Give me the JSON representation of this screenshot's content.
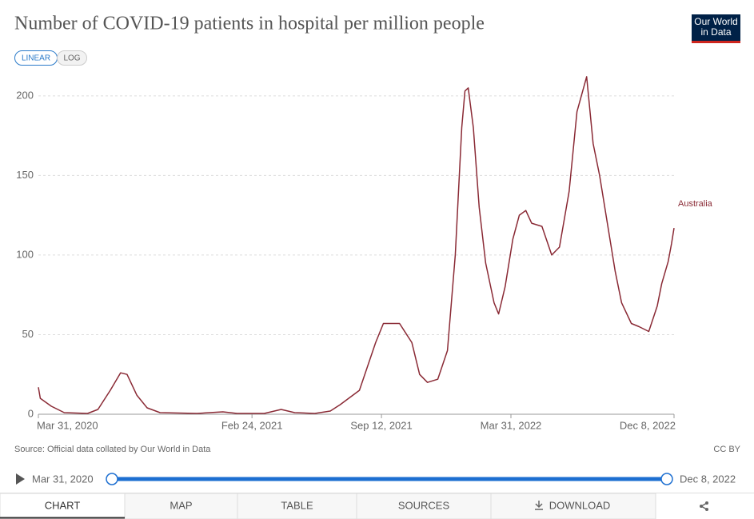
{
  "logo": "Our World in Data",
  "scale_buttons": [
    "LINEAR",
    "LOG"
  ],
  "chart_data": {
    "type": "line",
    "title": "Number of COVID-19 patients in hospital per million people",
    "source": "Source: Official data collated by Our World in Data",
    "license": "CC BY",
    "x": [
      "2020-03-31",
      "2020-04-03",
      "2020-04-20",
      "2020-05-10",
      "2020-06-15",
      "2020-07-01",
      "2020-07-20",
      "2020-08-05",
      "2020-08-15",
      "2020-08-30",
      "2020-09-15",
      "2020-10-05",
      "2020-12-01",
      "2021-01-10",
      "2021-02-01",
      "2021-03-15",
      "2021-04-10",
      "2021-05-01",
      "2021-06-01",
      "2021-06-25",
      "2021-07-10",
      "2021-08-09",
      "2021-09-03",
      "2021-09-15",
      "2021-10-10",
      "2021-10-29",
      "2021-11-10",
      "2021-11-22",
      "2021-12-08",
      "2021-12-23",
      "2022-01-04",
      "2022-01-14",
      "2022-01-19",
      "2022-01-24",
      "2022-02-01",
      "2022-02-10",
      "2022-02-20",
      "2022-03-05",
      "2022-03-12",
      "2022-03-22",
      "2022-04-03",
      "2022-04-13",
      "2022-04-23",
      "2022-05-02",
      "2022-05-18",
      "2022-06-02",
      "2022-06-14",
      "2022-06-29",
      "2022-07-11",
      "2022-07-26",
      "2022-08-05",
      "2022-08-15",
      "2022-08-27",
      "2022-09-08",
      "2022-09-18",
      "2022-10-03",
      "2022-10-15",
      "2022-10-30",
      "2022-11-12",
      "2022-11-19",
      "2022-11-29",
      "2022-12-04",
      "2022-12-08"
    ],
    "series": [
      {
        "name": "Australia",
        "color": "#8a2a35",
        "values": [
          17,
          10,
          5,
          1,
          0.5,
          3,
          15,
          26,
          25,
          12,
          4,
          1,
          0.5,
          1.5,
          0.5,
          0.5,
          3,
          1,
          0.5,
          2,
          6,
          15,
          45,
          57,
          57,
          45,
          25,
          20,
          22,
          40,
          100,
          180,
          203,
          205,
          180,
          130,
          95,
          70,
          63,
          80,
          110,
          125,
          128,
          120,
          118,
          100,
          105,
          140,
          190,
          212,
          170,
          150,
          120,
          90,
          70,
          57,
          55,
          52,
          68,
          82,
          96,
          107,
          117
        ]
      }
    ],
    "xlim": [
      "2020-03-31",
      "2022-12-08"
    ],
    "xticks": [
      {
        "value": "2020-03-31",
        "label": "Mar 31, 2020"
      },
      {
        "value": "2021-02-24",
        "label": "Feb 24, 2021"
      },
      {
        "value": "2021-09-12",
        "label": "Sep 12, 2021"
      },
      {
        "value": "2022-03-31",
        "label": "Mar 31, 2022"
      },
      {
        "value": "2022-12-08",
        "label": "Dec 8, 2022"
      }
    ],
    "ylim": [
      0,
      220
    ],
    "yticks": [
      0,
      50,
      100,
      150,
      200
    ],
    "grid": true
  },
  "timeline": {
    "start": "Mar 31, 2020",
    "end": "Dec 8, 2022"
  },
  "tabs": [
    "CHART",
    "MAP",
    "TABLE",
    "SOURCES",
    "DOWNLOAD"
  ]
}
